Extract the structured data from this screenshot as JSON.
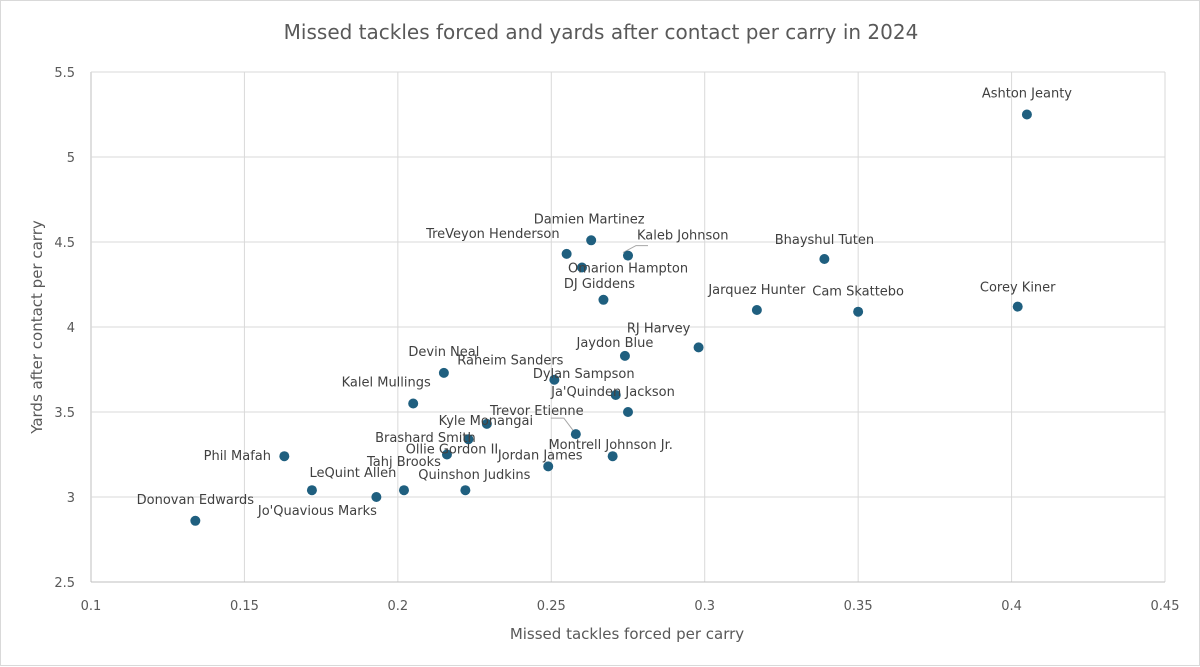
{
  "chart_data": {
    "type": "scatter",
    "title": "Missed tackles forced and yards after contact per carry in 2024",
    "xlabel": "Missed tackles forced per carry",
    "ylabel": "Yards after contact per carry",
    "xlim": [
      0.1,
      0.45
    ],
    "ylim": [
      2.5,
      5.5
    ],
    "x_ticks": [
      "0.1",
      "0.15",
      "0.2",
      "0.25",
      "0.3",
      "0.35",
      "0.4",
      "0.45"
    ],
    "y_ticks": [
      "2.5",
      "3",
      "3.5",
      "4",
      "4.5",
      "5",
      "5.5"
    ],
    "grid": true,
    "marker_color": "#1f5f7f",
    "points": [
      {
        "label": "Ashton Jeanty",
        "x": 0.405,
        "y": 5.25
      },
      {
        "label": "Damien Martinez",
        "x": 0.263,
        "y": 4.51
      },
      {
        "label": "Kaleb Johnson",
        "x": 0.275,
        "y": 4.42
      },
      {
        "label": "TreVeyon Henderson",
        "x": 0.255,
        "y": 4.43
      },
      {
        "label": "Omarion Hampton",
        "x": 0.26,
        "y": 4.35
      },
      {
        "label": "Bhayshul Tuten",
        "x": 0.339,
        "y": 4.4
      },
      {
        "label": "DJ Giddens",
        "x": 0.267,
        "y": 4.16
      },
      {
        "label": "Jarquez Hunter",
        "x": 0.317,
        "y": 4.1
      },
      {
        "label": "Cam Skattebo",
        "x": 0.35,
        "y": 4.09
      },
      {
        "label": "Corey Kiner",
        "x": 0.402,
        "y": 4.12
      },
      {
        "label": "RJ Harvey",
        "x": 0.298,
        "y": 3.88
      },
      {
        "label": "Jaydon Blue",
        "x": 0.274,
        "y": 3.83
      },
      {
        "label": "Devin Neal",
        "x": 0.215,
        "y": 3.73
      },
      {
        "label": "Raheim Sanders",
        "x": 0.251,
        "y": 3.69
      },
      {
        "label": "Dylan Sampson",
        "x": 0.271,
        "y": 3.6
      },
      {
        "label": "Ja'Quinden Jackson",
        "x": 0.275,
        "y": 3.5
      },
      {
        "label": "Kalel Mullings",
        "x": 0.205,
        "y": 3.55
      },
      {
        "label": "Trevor Etienne",
        "x": 0.258,
        "y": 3.37
      },
      {
        "label": "Kyle Monangai",
        "x": 0.229,
        "y": 3.43
      },
      {
        "label": "Brashard Smith",
        "x": 0.223,
        "y": 3.34
      },
      {
        "label": "Montrell Johnson Jr.",
        "x": 0.27,
        "y": 3.24
      },
      {
        "label": "Ollie Gordon II",
        "x": 0.216,
        "y": 3.25
      },
      {
        "label": "Jordan James",
        "x": 0.249,
        "y": 3.18
      },
      {
        "label": "Phil Mafah",
        "x": 0.163,
        "y": 3.24
      },
      {
        "label": "Tahj Brooks",
        "x": 0.202,
        "y": 3.04
      },
      {
        "label": "LeQuint Allen",
        "x": 0.172,
        "y": 3.04
      },
      {
        "label": "Quinshon Judkins",
        "x": 0.222,
        "y": 3.04
      },
      {
        "label": "Jo'Quavious Marks",
        "x": 0.193,
        "y": 3.0
      },
      {
        "label": "Donovan Edwards",
        "x": 0.134,
        "y": 2.86
      }
    ]
  }
}
